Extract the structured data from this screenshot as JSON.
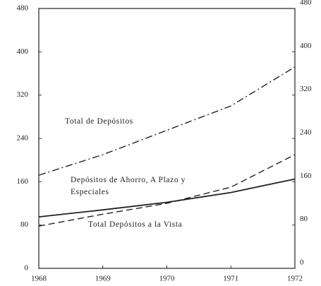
{
  "chart_data": {
    "type": "line",
    "x": [
      1968,
      1969,
      1970,
      1971,
      1972
    ],
    "xlim": [
      1968,
      1972
    ],
    "xticks": [
      1968,
      1969,
      1970,
      1971,
      1972
    ],
    "ylim": [
      0,
      480
    ],
    "yticks": [
      0,
      80,
      160,
      240,
      320,
      400,
      480
    ],
    "y2lim": [
      0,
      480
    ],
    "y2ticks": [
      0,
      80,
      160,
      240,
      320,
      400,
      480
    ],
    "series": [
      {
        "name": "Total de Depósitos",
        "color": "#222222",
        "dash": "dashdot",
        "values": [
          172,
          210,
          255,
          300,
          372
        ]
      },
      {
        "name": "Depósitos de Ahorro, A Plazo y Especiales",
        "color": "#222222",
        "dash": "dashed",
        "values": [
          78,
          100,
          120,
          150,
          210
        ]
      },
      {
        "name": "Total Depósitos a la Vista",
        "color": "#222222",
        "dash": "solid",
        "values": [
          95,
          108,
          122,
          140,
          165
        ]
      }
    ]
  }
}
